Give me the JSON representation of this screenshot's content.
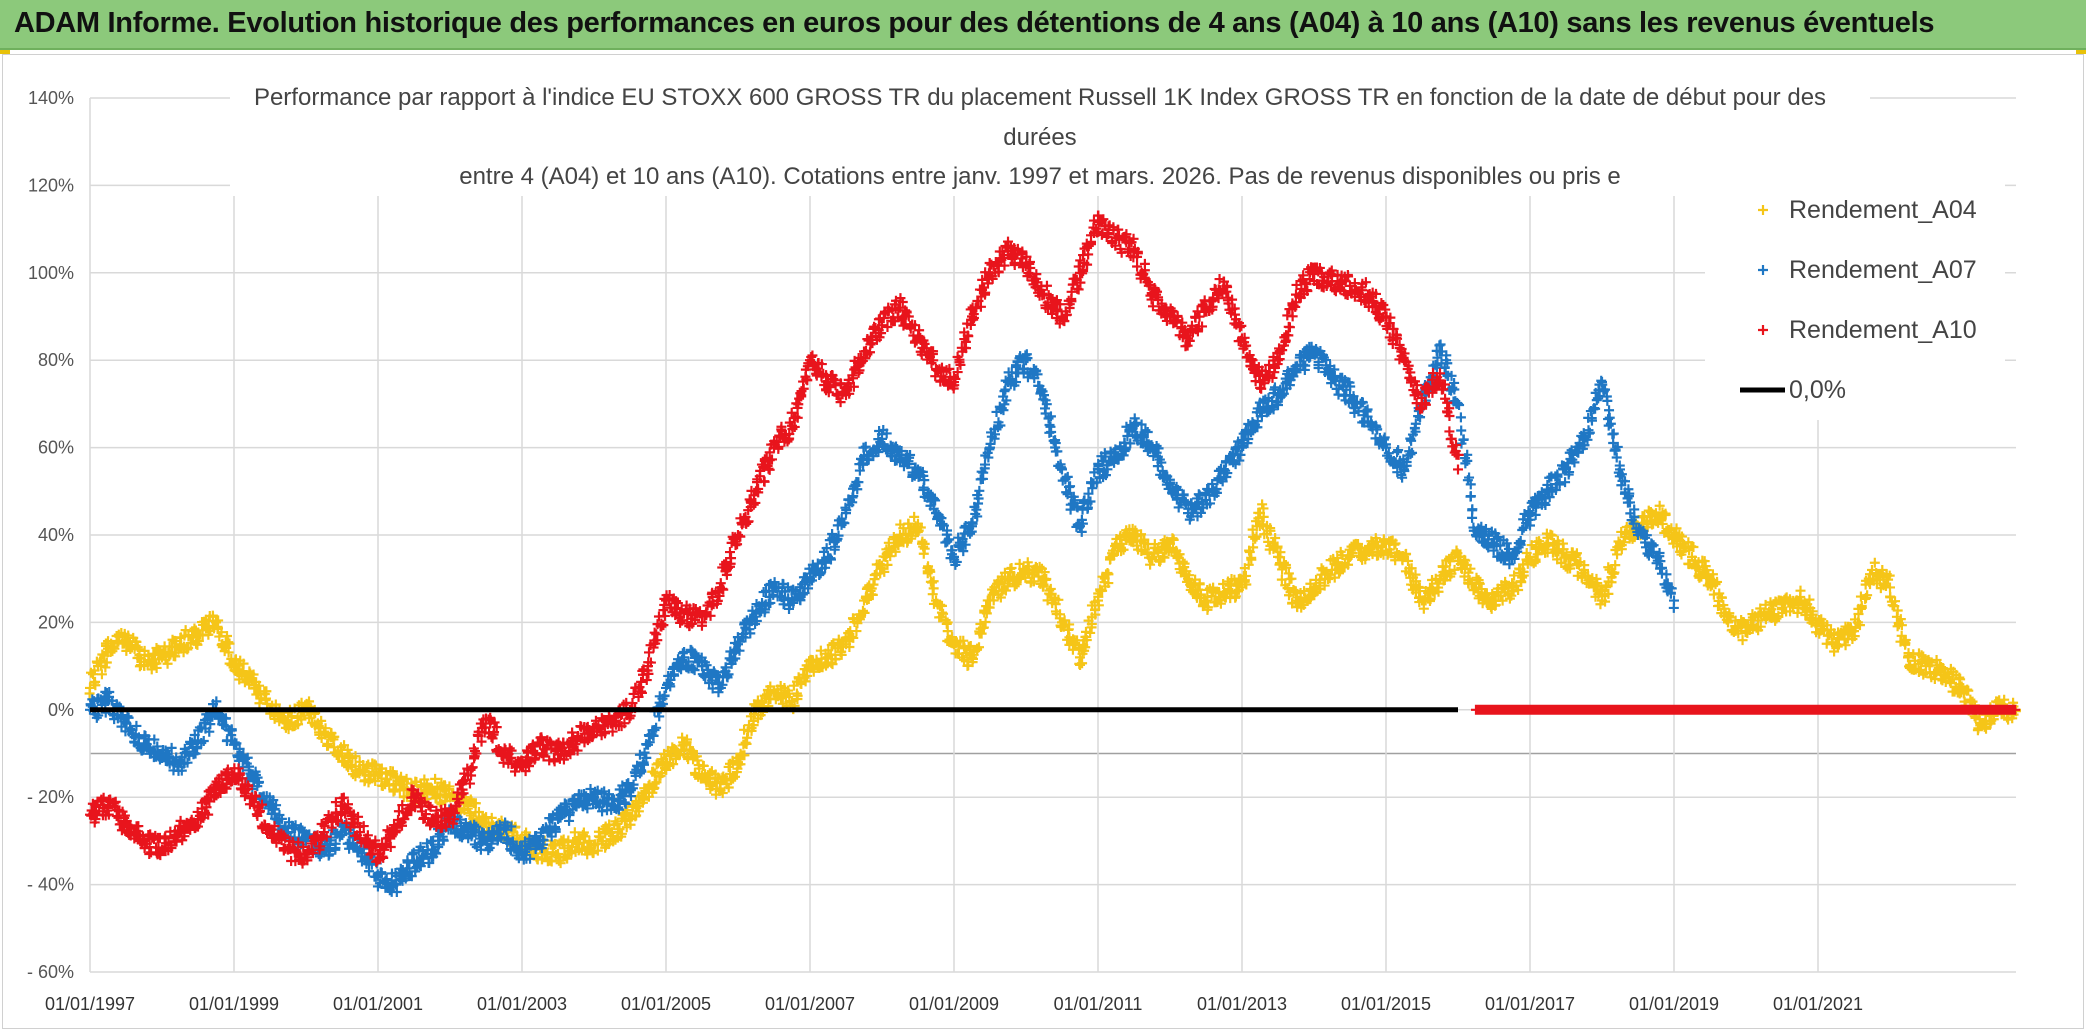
{
  "banner": {
    "title": "ADAM Informe. Evolution historique des performances en euros pour des détentions de 4 ans (A04) à 10 ans (A10) sans les revenus éventuels"
  },
  "colors": {
    "banner_bg": "#8cc97b",
    "a04": "#f5c518",
    "a07": "#1f77c4",
    "a10": "#e8141c",
    "zero": "#000000",
    "grid": "#d9d9d9"
  },
  "chart_data": {
    "type": "scatter",
    "title_lines": [
      "Performance par rapport à l'indice EU STOXX 600 GROSS TR  du placement Russell 1K Index GROSS TR en fonction de la date de début pour des",
      "durées",
      "entre 4 (A04) et 10 ans (A10). Cotations entre janv. 1997 et mars. 2026. Pas de revenus disponibles ou pris e"
    ],
    "xlabel": "",
    "ylabel": "",
    "xlim": [
      1997.0,
      2023.75
    ],
    "ylim": [
      -60,
      140
    ],
    "y_ticks": [
      "140%",
      "120%",
      "100%",
      "80%",
      "60%",
      "40%",
      "20%",
      "0%",
      "- 20%",
      "- 40%",
      "- 60%"
    ],
    "y_tick_values": [
      140,
      120,
      100,
      80,
      60,
      40,
      20,
      0,
      -20,
      -40,
      -60
    ],
    "x_ticks": [
      "01/01/1997",
      "01/01/1999",
      "01/01/2001",
      "01/01/2003",
      "01/01/2005",
      "01/01/2007",
      "01/01/2009",
      "01/01/2011",
      "01/01/2013",
      "01/01/2015",
      "01/01/2017",
      "01/01/2019",
      "01/01/2021"
    ],
    "x_tick_values": [
      1997,
      1999,
      2001,
      2003,
      2005,
      2007,
      2009,
      2011,
      2013,
      2015,
      2017,
      2019,
      2021
    ],
    "legend_position": "top-right",
    "series": [
      {
        "name": "Rendement_A04",
        "color": "#f5c518",
        "marker": "plus",
        "x": [
          1997.0,
          1997.25,
          1997.5,
          1997.75,
          1998.0,
          1998.25,
          1998.5,
          1998.75,
          1999.0,
          1999.25,
          1999.5,
          1999.75,
          2000.0,
          2000.25,
          2000.5,
          2000.75,
          2001.0,
          2001.25,
          2001.5,
          2001.75,
          2002.0,
          2002.25,
          2002.5,
          2002.75,
          2003.0,
          2003.25,
          2003.5,
          2003.75,
          2004.0,
          2004.25,
          2004.5,
          2004.75,
          2005.0,
          2005.25,
          2005.5,
          2005.75,
          2006.0,
          2006.25,
          2006.5,
          2006.75,
          2007.0,
          2007.25,
          2007.5,
          2007.75,
          2008.0,
          2008.25,
          2008.5,
          2008.75,
          2009.0,
          2009.25,
          2009.5,
          2009.75,
          2010.0,
          2010.25,
          2010.5,
          2010.75,
          2011.0,
          2011.25,
          2011.5,
          2011.75,
          2012.0,
          2012.25,
          2012.5,
          2012.75,
          2013.0,
          2013.25,
          2013.5,
          2013.75,
          2014.0,
          2014.25,
          2014.5,
          2014.75,
          2015.0,
          2015.25,
          2015.5,
          2015.75,
          2016.0,
          2016.25,
          2016.5,
          2016.75,
          2017.0,
          2017.25,
          2017.5,
          2017.75,
          2018.0,
          2018.25,
          2018.5,
          2018.75,
          2019.0,
          2019.25,
          2019.5,
          2019.75,
          2020.0,
          2020.25,
          2020.5,
          2020.75,
          2021.0,
          2021.25,
          2021.5,
          2021.75,
          2022.0,
          2022.25,
          2022.5,
          2022.75,
          2023.0,
          2023.25,
          2023.5,
          2023.75
        ],
        "values": [
          5,
          14,
          16,
          11,
          12,
          15,
          17,
          20,
          10,
          7,
          0,
          -3,
          1,
          -5,
          -10,
          -14,
          -15,
          -17,
          -19,
          -18,
          -20,
          -22,
          -26,
          -28,
          -30,
          -32,
          -33,
          -30,
          -31,
          -28,
          -25,
          -18,
          -12,
          -8,
          -15,
          -18,
          -12,
          0,
          4,
          2,
          10,
          12,
          15,
          25,
          33,
          40,
          42,
          25,
          15,
          12,
          25,
          30,
          32,
          30,
          20,
          12,
          25,
          38,
          40,
          35,
          38,
          30,
          25,
          27,
          28,
          45,
          35,
          25,
          28,
          32,
          35,
          37,
          38,
          35,
          25,
          30,
          35,
          28,
          25,
          28,
          35,
          38,
          35,
          32,
          25,
          38,
          42,
          45,
          40,
          35,
          30,
          20,
          18,
          22,
          23,
          25,
          20,
          15,
          18,
          32,
          28,
          12,
          10,
          8,
          5,
          -3,
          0,
          0
        ]
      },
      {
        "name": "Rendement_A07",
        "color": "#1f77c4",
        "marker": "plus",
        "x": [
          1997.0,
          1997.25,
          1997.5,
          1997.75,
          1998.0,
          1998.25,
          1998.5,
          1998.75,
          1999.0,
          1999.25,
          1999.5,
          1999.75,
          2000.0,
          2000.25,
          2000.5,
          2000.75,
          2001.0,
          2001.25,
          2001.5,
          2001.75,
          2002.0,
          2002.25,
          2002.5,
          2002.75,
          2003.0,
          2003.25,
          2003.5,
          2003.75,
          2004.0,
          2004.25,
          2004.5,
          2004.75,
          2005.0,
          2005.25,
          2005.5,
          2005.75,
          2006.0,
          2006.25,
          2006.5,
          2006.75,
          2007.0,
          2007.25,
          2007.5,
          2007.75,
          2008.0,
          2008.25,
          2008.5,
          2008.75,
          2009.0,
          2009.25,
          2009.5,
          2009.75,
          2010.0,
          2010.25,
          2010.5,
          2010.75,
          2011.0,
          2011.25,
          2011.5,
          2011.75,
          2012.0,
          2012.25,
          2012.5,
          2012.75,
          2013.0,
          2013.25,
          2013.5,
          2013.75,
          2014.0,
          2014.25,
          2014.5,
          2014.75,
          2015.0,
          2015.25,
          2015.5,
          2015.75,
          2016.0,
          2016.25,
          2016.5,
          2016.75,
          2017.0,
          2017.25,
          2017.5,
          2017.75,
          2018.0,
          2018.25,
          2018.5,
          2018.75,
          2019.0
        ],
        "values": [
          0,
          2,
          -3,
          -8,
          -10,
          -12,
          -7,
          0,
          -8,
          -15,
          -22,
          -28,
          -30,
          -32,
          -28,
          -32,
          -38,
          -40,
          -35,
          -32,
          -25,
          -28,
          -30,
          -27,
          -33,
          -30,
          -25,
          -22,
          -20,
          -22,
          -18,
          -8,
          5,
          12,
          10,
          5,
          15,
          22,
          28,
          25,
          30,
          35,
          45,
          58,
          62,
          57,
          55,
          45,
          35,
          42,
          60,
          75,
          80,
          72,
          55,
          42,
          55,
          58,
          65,
          60,
          52,
          45,
          48,
          55,
          60,
          68,
          72,
          78,
          82,
          76,
          72,
          66,
          60,
          55,
          70,
          82,
          70,
          40,
          38,
          35,
          45,
          50,
          55,
          62,
          75,
          55,
          40,
          35,
          25
        ]
      },
      {
        "name": "Rendement_A10",
        "color": "#e8141c",
        "marker": "plus",
        "x": [
          1997.0,
          1997.25,
          1997.5,
          1997.75,
          1998.0,
          1998.25,
          1998.5,
          1998.75,
          1999.0,
          1999.25,
          1999.5,
          1999.75,
          2000.0,
          2000.25,
          2000.5,
          2000.75,
          2001.0,
          2001.25,
          2001.5,
          2001.75,
          2002.0,
          2002.25,
          2002.5,
          2002.75,
          2003.0,
          2003.25,
          2003.5,
          2003.75,
          2004.0,
          2004.25,
          2004.5,
          2004.75,
          2005.0,
          2005.25,
          2005.5,
          2005.75,
          2006.0,
          2006.25,
          2006.5,
          2006.75,
          2007.0,
          2007.25,
          2007.5,
          2007.75,
          2008.0,
          2008.25,
          2008.5,
          2008.75,
          2009.0,
          2009.25,
          2009.5,
          2009.75,
          2010.0,
          2010.25,
          2010.5,
          2010.75,
          2011.0,
          2011.25,
          2011.5,
          2011.75,
          2012.0,
          2012.25,
          2012.5,
          2012.75,
          2013.0,
          2013.25,
          2013.5,
          2013.75,
          2014.0,
          2014.25,
          2014.5,
          2014.75,
          2015.0,
          2015.25,
          2015.5,
          2015.75,
          2016.0
        ],
        "values": [
          -24,
          -22,
          -26,
          -30,
          -32,
          -28,
          -25,
          -18,
          -15,
          -20,
          -28,
          -32,
          -33,
          -28,
          -22,
          -28,
          -33,
          -27,
          -20,
          -25,
          -25,
          -15,
          -2,
          -10,
          -13,
          -8,
          -10,
          -7,
          -4,
          -3,
          0,
          10,
          25,
          22,
          20,
          28,
          40,
          50,
          60,
          65,
          80,
          75,
          72,
          82,
          88,
          92,
          85,
          78,
          75,
          90,
          100,
          105,
          102,
          95,
          90,
          100,
          112,
          108,
          105,
          95,
          90,
          85,
          92,
          98,
          85,
          75,
          80,
          95,
          100,
          98,
          97,
          95,
          90,
          80,
          70,
          77,
          55
        ]
      },
      {
        "name": "0,0%",
        "color": "#000000",
        "marker": "line",
        "x": [
          1997.0,
          2016.0
        ],
        "values": [
          0,
          0
        ]
      }
    ],
    "flat_zero_segment": {
      "name": "Rendement_A10",
      "from_x": 2016.25,
      "to_x": 2023.75,
      "value": 0
    }
  }
}
